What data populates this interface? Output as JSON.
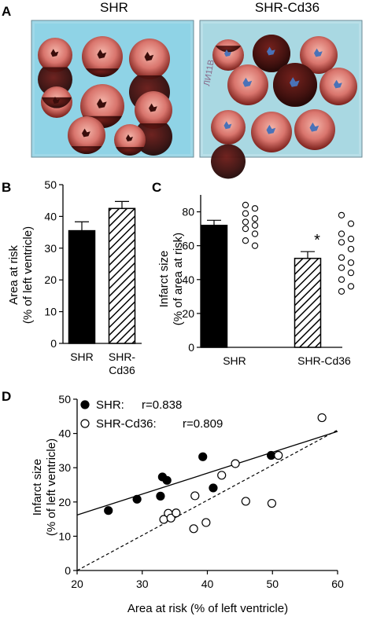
{
  "panels": {
    "a": "A",
    "b": "B",
    "c": "C",
    "d": "D"
  },
  "photos": {
    "left_label": "SHR",
    "right_label": "SHR-Cd36",
    "plate_label": "ЛИ11В"
  },
  "significance_marker": "*",
  "chart_data": [
    {
      "id": "B",
      "type": "bar",
      "categories": [
        "SHR",
        "SHR-\nCd36"
      ],
      "values": [
        35.5,
        42.5
      ],
      "errors": [
        2.8,
        2.2
      ],
      "fills": [
        "solid",
        "hatched"
      ],
      "ylabel_line1": "Area at risk",
      "ylabel_line2": "(% of left ventricle)",
      "ylim": [
        0,
        50
      ],
      "yticks": [
        0,
        10,
        20,
        30,
        40,
        50
      ],
      "xlabel": ""
    },
    {
      "id": "C",
      "type": "bar",
      "categories": [
        "SHR",
        "SHR-Cd36"
      ],
      "values": [
        72,
        52.5
      ],
      "errors": [
        3,
        4
      ],
      "fills": [
        "solid",
        "hatched"
      ],
      "ylabel_line1": "Infarct size",
      "ylabel_line2": "(% of area at risk)",
      "ylim": [
        0,
        90
      ],
      "yticks": [
        0,
        20,
        40,
        60,
        80
      ],
      "xlabel": "",
      "individual_points": [
        {
          "group": "SHR",
          "values": [
            84,
            82,
            79,
            76,
            74,
            72,
            70,
            67,
            63,
            60
          ]
        },
        {
          "group": "SHR-Cd36",
          "values": [
            78,
            73,
            67,
            64,
            62,
            58,
            53,
            50,
            47,
            44,
            40,
            36,
            33
          ]
        }
      ]
    },
    {
      "id": "D",
      "type": "scatter",
      "xlabel": "Area at risk (% of left ventricle)",
      "ylabel_line1": "Infarct size",
      "ylabel_line2": "(% of left ventricle)",
      "xlim": [
        20,
        60
      ],
      "ylim": [
        0,
        50
      ],
      "xticks": [
        20,
        30,
        40,
        50,
        60
      ],
      "yticks": [
        0,
        10,
        20,
        30,
        40,
        50
      ],
      "legend": "top-left",
      "series": [
        {
          "name": "SHR:",
          "r_text": "r=0.838",
          "marker": "filled",
          "points": [
            [
              24.8,
              17.5
            ],
            [
              29.2,
              20.8
            ],
            [
              32.8,
              21.7
            ],
            [
              33.1,
              27.3
            ],
            [
              33.8,
              26.3
            ],
            [
              39.3,
              33.2
            ],
            [
              40.9,
              24.1
            ],
            [
              49.8,
              33.6
            ]
          ],
          "fit": [
            [
              20,
              16.2
            ],
            [
              60,
              40.6
            ]
          ]
        },
        {
          "name": "SHR-Cd36:",
          "r_text": "r=0.809",
          "marker": "open",
          "points": [
            [
              33.3,
              14.9
            ],
            [
              34.0,
              16.7
            ],
            [
              34.4,
              15.3
            ],
            [
              35.2,
              16.8
            ],
            [
              37.9,
              12.2
            ],
            [
              38.1,
              21.8
            ],
            [
              39.8,
              14.0
            ],
            [
              42.2,
              27.8
            ],
            [
              44.3,
              31.2
            ],
            [
              45.9,
              20.2
            ],
            [
              49.9,
              19.6
            ],
            [
              50.9,
              33.6
            ],
            [
              57.6,
              44.6
            ]
          ],
          "fit": [
            [
              20,
              0
            ],
            [
              60,
              41
            ]
          ]
        }
      ]
    }
  ]
}
